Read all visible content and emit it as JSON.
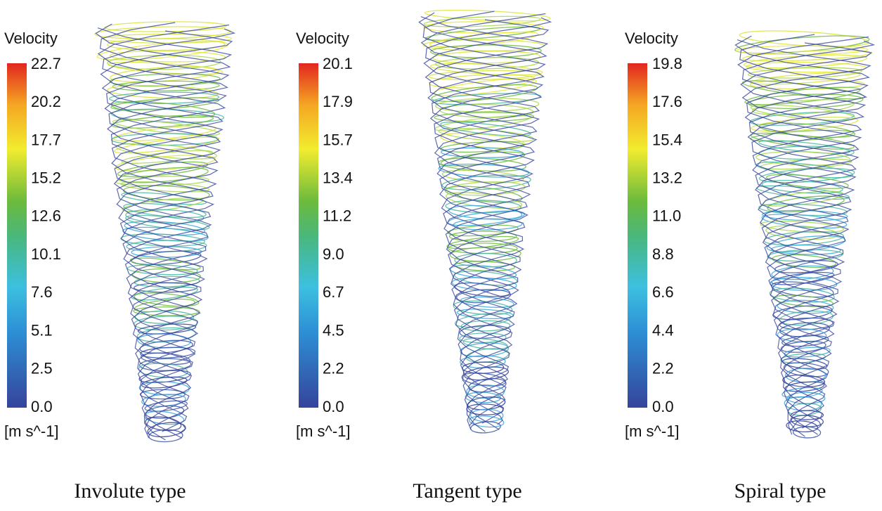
{
  "panels": [
    {
      "legend_title": "Velocity",
      "ticks": [
        "22.7",
        "20.2",
        "17.7",
        "15.2",
        "12.6",
        "10.1",
        "7.6",
        "5.1",
        "2.5",
        "0.0"
      ],
      "unit": "[m s^-1]",
      "caption": "Involute type"
    },
    {
      "legend_title": "Velocity",
      "ticks": [
        "20.1",
        "17.9",
        "15.7",
        "13.4",
        "11.2",
        "9.0",
        "6.7",
        "4.5",
        "2.2",
        "0.0"
      ],
      "unit": "[m s^-1]",
      "caption": "Tangent type"
    },
    {
      "legend_title": "Velocity",
      "ticks": [
        "19.8",
        "17.6",
        "15.4",
        "13.2",
        "11.0",
        "8.8",
        "6.6",
        "4.4",
        "2.2",
        "0.0"
      ],
      "unit": "[m s^-1]",
      "caption": "Spiral type"
    }
  ]
}
